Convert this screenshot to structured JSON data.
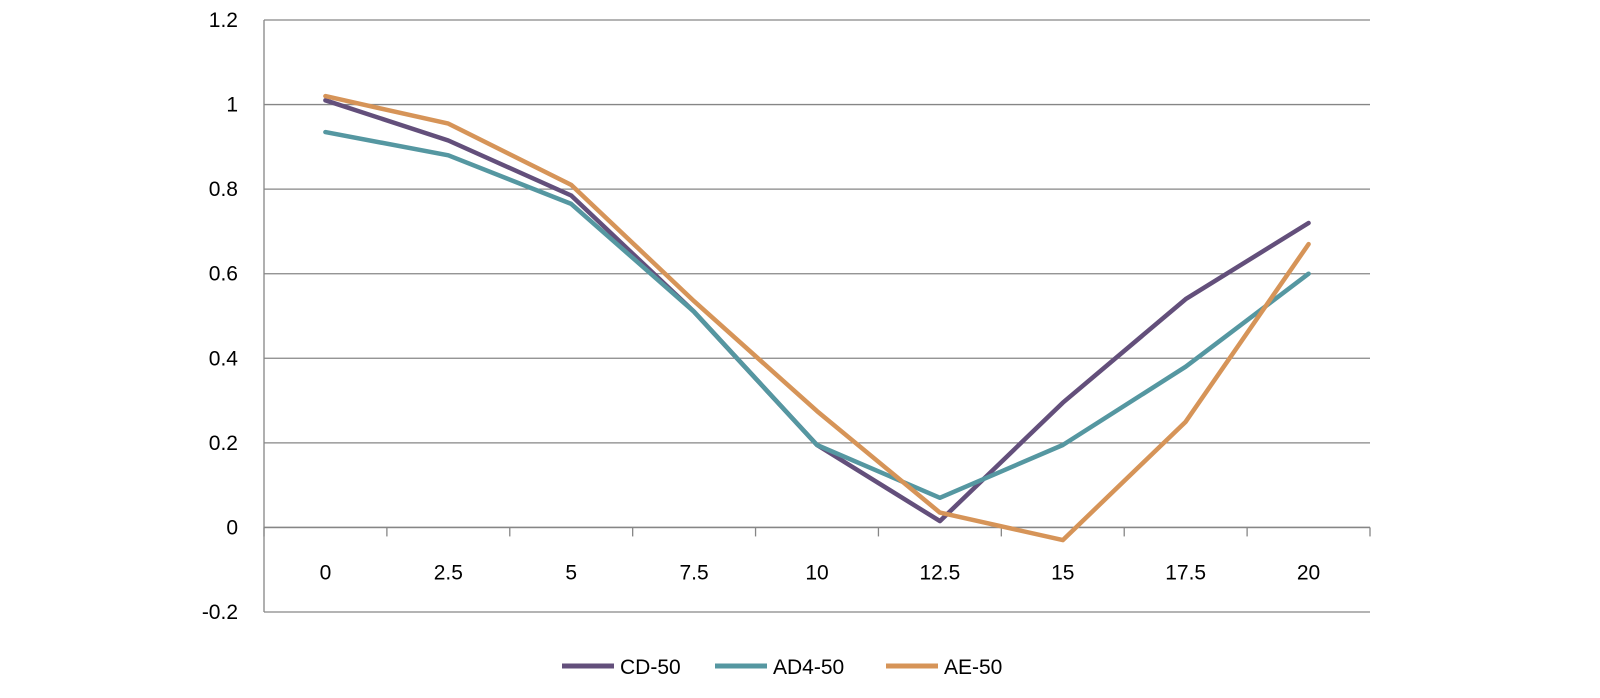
{
  "chart_data": {
    "type": "line",
    "title": "",
    "xlabel": "",
    "ylabel": "",
    "categories": [
      "0",
      "2.5",
      "5",
      "7.5",
      "10",
      "12.5",
      "15",
      "17.5",
      "20"
    ],
    "y_ticks": [
      "-0.2",
      "0",
      "0.2",
      "0.4",
      "0.6",
      "0.8",
      "1",
      "1.2"
    ],
    "ylim": [
      -0.2,
      1.2
    ],
    "grid": true,
    "legend_position": "bottom",
    "series": [
      {
        "name": "CD-50",
        "color": "#634f7b",
        "values": [
          1.01,
          0.915,
          0.785,
          0.51,
          0.195,
          0.015,
          0.295,
          0.54,
          0.72
        ]
      },
      {
        "name": "AD4-50",
        "color": "#5597a1",
        "values": [
          0.935,
          0.88,
          0.765,
          0.51,
          0.195,
          0.07,
          0.195,
          0.38,
          0.6
        ]
      },
      {
        "name": "AE-50",
        "color": "#d69458",
        "values": [
          1.02,
          0.955,
          0.81,
          0.535,
          0.275,
          0.035,
          -0.03,
          0.25,
          0.67
        ]
      }
    ]
  }
}
